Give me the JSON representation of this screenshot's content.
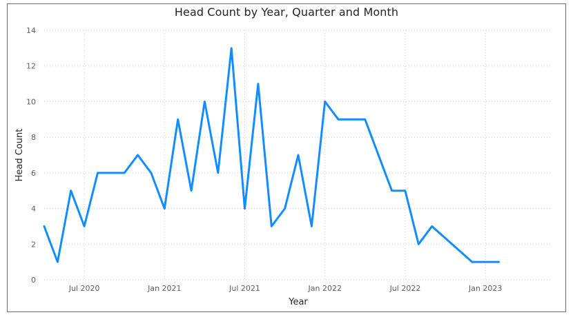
{
  "chart_data": {
    "type": "line",
    "title": "Head Count by Year, Quarter and Month",
    "xlabel": "Year",
    "ylabel": "Head Count",
    "ylim": [
      0,
      14
    ],
    "yticks": [
      0,
      2,
      4,
      6,
      8,
      10,
      12,
      14
    ],
    "xlim": [
      "2020-04",
      "2023-06"
    ],
    "xticks": [
      {
        "date": "2020-07",
        "label": "Jul 2020"
      },
      {
        "date": "2021-01",
        "label": "Jan 2021"
      },
      {
        "date": "2021-07",
        "label": "Jul 2021"
      },
      {
        "date": "2022-01",
        "label": "Jan 2022"
      },
      {
        "date": "2022-07",
        "label": "Jul 2022"
      },
      {
        "date": "2023-01",
        "label": "Jan 2023"
      }
    ],
    "grid": true,
    "color": "#118DFF",
    "series": [
      {
        "points": [
          {
            "x": "2020-04",
            "y": 3
          },
          {
            "x": "2020-05",
            "y": 1
          },
          {
            "x": "2020-06",
            "y": 5
          },
          {
            "x": "2020-07",
            "y": 3
          },
          {
            "x": "2020-08",
            "y": 6
          },
          {
            "x": "2020-10",
            "y": 6
          },
          {
            "x": "2020-11",
            "y": 7
          },
          {
            "x": "2020-12",
            "y": 6
          },
          {
            "x": "2021-01",
            "y": 4
          },
          {
            "x": "2021-02",
            "y": 9
          },
          {
            "x": "2021-03",
            "y": 5
          },
          {
            "x": "2021-04",
            "y": 10
          },
          {
            "x": "2021-05",
            "y": 6
          },
          {
            "x": "2021-06",
            "y": 13
          },
          {
            "x": "2021-07",
            "y": 4
          },
          {
            "x": "2021-08",
            "y": 11
          },
          {
            "x": "2021-09",
            "y": 3
          },
          {
            "x": "2021-10",
            "y": 4
          },
          {
            "x": "2021-11",
            "y": 7
          },
          {
            "x": "2021-12",
            "y": 3
          },
          {
            "x": "2022-01",
            "y": 10
          },
          {
            "x": "2022-02",
            "y": 9
          },
          {
            "x": "2022-04",
            "y": 9
          },
          {
            "x": "2022-06",
            "y": 5
          },
          {
            "x": "2022-07",
            "y": 5
          },
          {
            "x": "2022-08",
            "y": 2
          },
          {
            "x": "2022-09",
            "y": 3
          },
          {
            "x": "2022-12",
            "y": 1
          },
          {
            "x": "2023-02",
            "y": 1
          }
        ]
      }
    ]
  }
}
